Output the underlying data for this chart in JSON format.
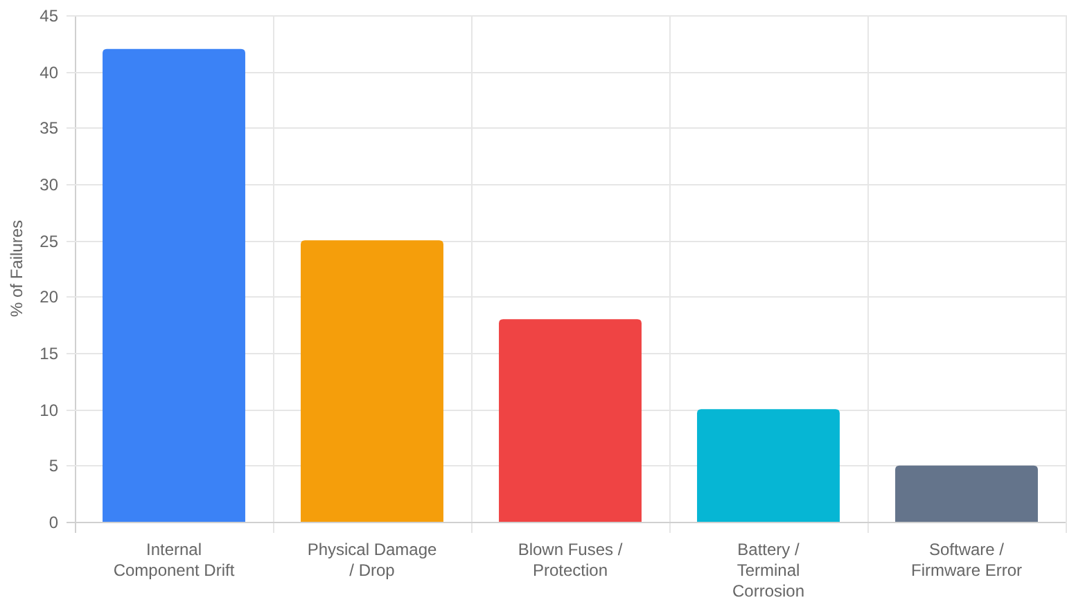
{
  "chart_data": {
    "type": "bar",
    "ylabel": "% of Failures",
    "categories": [
      "Internal\nComponent Drift",
      "Physical Damage\n/ Drop",
      "Blown Fuses /\nProtection",
      "Battery /\nTerminal\nCorrosion",
      "Software /\nFirmware Error"
    ],
    "values": [
      42,
      25,
      18,
      10,
      5
    ],
    "colors": [
      "#3b82f6",
      "#f59e0b",
      "#ef4444",
      "#06b6d4",
      "#64748b"
    ],
    "ylim": [
      0,
      45
    ],
    "yticks": [
      0,
      5,
      10,
      15,
      20,
      25,
      30,
      35,
      40,
      45
    ],
    "grid": true
  }
}
